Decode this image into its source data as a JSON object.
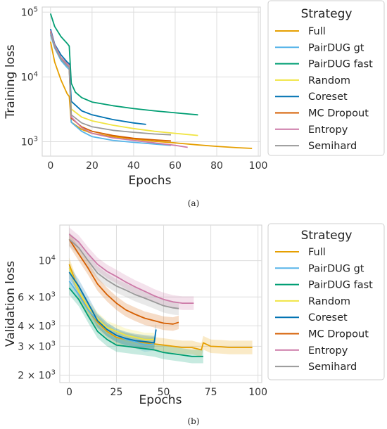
{
  "chart_data": [
    {
      "type": "line",
      "panel_label": "(a)",
      "xlabel": "Epochs",
      "ylabel": "Training loss",
      "yscale": "log",
      "xlim": [
        -4,
        101
      ],
      "ylim": [
        600,
        120000
      ],
      "x_ticks": [
        0,
        20,
        40,
        60,
        80,
        100
      ],
      "y_ticks": [
        {
          "value": 1000,
          "base": "10",
          "exp": "3"
        },
        {
          "value": 10000,
          "base": "10",
          "exp": "4"
        },
        {
          "value": 100000,
          "base": "10",
          "exp": "5"
        }
      ],
      "grid": true,
      "legend": {
        "title": "Strategy",
        "placement": "outside-right"
      },
      "series": [
        {
          "name": "Full",
          "color": "#E69F00",
          "x": [
            0,
            2,
            5,
            8,
            9,
            10,
            15,
            20,
            30,
            40,
            50,
            60,
            70,
            80,
            90,
            97
          ],
          "y": [
            35000,
            17000,
            9000,
            5500,
            5000,
            2000,
            1550,
            1350,
            1200,
            1100,
            1020,
            960,
            900,
            850,
            810,
            790
          ]
        },
        {
          "name": "PairDUG gt",
          "color": "#56B4E9",
          "x": [
            0,
            2,
            5,
            8,
            9,
            10,
            15,
            20,
            30,
            40,
            50,
            58
          ],
          "y": [
            45000,
            28000,
            18000,
            14000,
            13000,
            2000,
            1450,
            1200,
            1050,
            980,
            920,
            880
          ]
        },
        {
          "name": "PairDUG fast",
          "color": "#009E73",
          "x": [
            0,
            2,
            5,
            8,
            9,
            10,
            12,
            15,
            20,
            30,
            40,
            50,
            60,
            71
          ],
          "y": [
            95000,
            60000,
            42000,
            33000,
            30000,
            8000,
            5800,
            4800,
            4100,
            3600,
            3250,
            3000,
            2800,
            2600
          ]
        },
        {
          "name": "Random",
          "color": "#F0E442",
          "x": [
            0,
            2,
            5,
            8,
            9,
            10,
            15,
            20,
            30,
            40,
            50,
            60,
            71
          ],
          "y": [
            50000,
            30000,
            20000,
            16000,
            15000,
            3200,
            2400,
            2100,
            1800,
            1600,
            1450,
            1350,
            1250
          ]
        },
        {
          "name": "Coreset",
          "color": "#0072B2",
          "x": [
            0,
            2,
            5,
            8,
            9,
            10,
            15,
            20,
            30,
            40,
            46
          ],
          "y": [
            55000,
            32000,
            22000,
            17000,
            16000,
            4200,
            3000,
            2600,
            2200,
            1950,
            1850
          ]
        },
        {
          "name": "MC Dropout",
          "color": "#D55E00",
          "x": [
            0,
            2,
            5,
            8,
            9,
            10,
            15,
            20,
            30,
            40,
            50,
            58
          ],
          "y": [
            50000,
            30000,
            19000,
            15000,
            14000,
            2300,
            1700,
            1450,
            1250,
            1130,
            1070,
            1030
          ]
        },
        {
          "name": "Entropy",
          "color": "#CC79A7",
          "x": [
            0,
            2,
            5,
            8,
            9,
            10,
            15,
            20,
            30,
            40,
            50,
            60,
            66
          ],
          "y": [
            52000,
            31000,
            20000,
            16000,
            15000,
            2400,
            1650,
            1350,
            1150,
            1050,
            960,
            880,
            820
          ]
        },
        {
          "name": "Semihard",
          "color": "#999999",
          "x": [
            0,
            2,
            5,
            8,
            9,
            10,
            15,
            20,
            30,
            40,
            50,
            58
          ],
          "y": [
            48000,
            29000,
            19000,
            15000,
            14000,
            2600,
            1950,
            1700,
            1500,
            1400,
            1320,
            1280
          ]
        }
      ]
    },
    {
      "type": "line",
      "panel_label": "(b)",
      "xlabel": "Epochs",
      "ylabel": "Validation loss",
      "yscale": "log",
      "xlim": [
        -5,
        102
      ],
      "ylim": [
        1800,
        16500
      ],
      "x_ticks": [
        0,
        25,
        50,
        75,
        100
      ],
      "y_ticks": [
        {
          "value": 2000,
          "base": "2 × 10",
          "exp": "3"
        },
        {
          "value": 3000,
          "base": "3 × 10",
          "exp": "3"
        },
        {
          "value": 4000,
          "base": "4 × 10",
          "exp": "3"
        },
        {
          "value": 6000,
          "base": "6 × 10",
          "exp": "3"
        },
        {
          "value": 10000,
          "base": "10",
          "exp": "4"
        }
      ],
      "grid": true,
      "confidence_bands": true,
      "legend": {
        "title": "Strategy",
        "placement": "outside-right"
      },
      "series": [
        {
          "name": "Full",
          "color": "#E69F00",
          "x": [
            0,
            5,
            10,
            15,
            20,
            25,
            30,
            35,
            40,
            45,
            50,
            55,
            60,
            65,
            70,
            71,
            75,
            80,
            85,
            90,
            97
          ],
          "y": [
            9500,
            6500,
            5000,
            4200,
            3700,
            3400,
            3300,
            3200,
            3150,
            3100,
            3050,
            3000,
            2950,
            2950,
            2850,
            3150,
            3000,
            2980,
            2950,
            2950,
            2950
          ]
        },
        {
          "name": "PairDUG gt",
          "color": "#56B4E9",
          "x": [
            0,
            5,
            10,
            15,
            20,
            25,
            30,
            35,
            40,
            45
          ],
          "y": [
            7500,
            6200,
            5000,
            4300,
            3800,
            3500,
            3300,
            3200,
            3050,
            3100
          ]
        },
        {
          "name": "PairDUG fast",
          "color": "#009E73",
          "x": [
            0,
            5,
            10,
            15,
            20,
            25,
            30,
            35,
            40,
            45,
            50,
            55,
            60,
            65,
            71
          ],
          "y": [
            6800,
            5800,
            4600,
            3700,
            3300,
            3050,
            3000,
            2950,
            2900,
            2850,
            2750,
            2700,
            2650,
            2600,
            2600
          ]
        },
        {
          "name": "Random",
          "color": "#F0E442",
          "x": [
            0,
            5,
            10,
            15,
            20,
            25,
            30,
            35,
            40,
            45
          ],
          "y": [
            9000,
            6500,
            5200,
            4400,
            3900,
            3700,
            3500,
            3400,
            3300,
            3300
          ]
        },
        {
          "name": "Coreset",
          "color": "#0072B2",
          "x": [
            0,
            5,
            10,
            15,
            20,
            25,
            30,
            35,
            40,
            45,
            46
          ],
          "y": [
            8500,
            7000,
            5500,
            4300,
            3800,
            3500,
            3350,
            3250,
            3200,
            3150,
            3800
          ]
        },
        {
          "name": "MC Dropout",
          "color": "#D55E00",
          "x": [
            0,
            5,
            10,
            15,
            20,
            25,
            30,
            35,
            40,
            45,
            50,
            55,
            58
          ],
          "y": [
            13500,
            11000,
            9000,
            7200,
            6200,
            5500,
            5000,
            4700,
            4450,
            4300,
            4150,
            4100,
            4200
          ]
        },
        {
          "name": "Entropy",
          "color": "#CC79A7",
          "x": [
            0,
            5,
            10,
            15,
            20,
            25,
            30,
            35,
            40,
            45,
            50,
            55,
            60,
            66
          ],
          "y": [
            14500,
            13000,
            11000,
            9500,
            8600,
            8000,
            7400,
            6900,
            6500,
            6100,
            5800,
            5600,
            5500,
            5500
          ]
        },
        {
          "name": "Semihard",
          "color": "#999999",
          "x": [
            0,
            5,
            10,
            15,
            20,
            25,
            30,
            35,
            40,
            45,
            50,
            55,
            58
          ],
          "y": [
            13500,
            12000,
            10000,
            8400,
            7600,
            7000,
            6600,
            6200,
            5900,
            5600,
            5300,
            5150,
            5100
          ]
        }
      ]
    }
  ]
}
